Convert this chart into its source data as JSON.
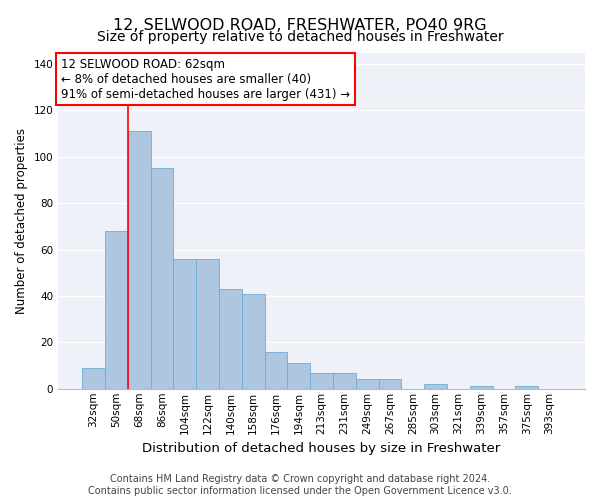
{
  "title": "12, SELWOOD ROAD, FRESHWATER, PO40 9RG",
  "subtitle": "Size of property relative to detached houses in Freshwater",
  "xlabel": "Distribution of detached houses by size in Freshwater",
  "ylabel": "Number of detached properties",
  "categories": [
    "32sqm",
    "50sqm",
    "68sqm",
    "86sqm",
    "104sqm",
    "122sqm",
    "140sqm",
    "158sqm",
    "176sqm",
    "194sqm",
    "213sqm",
    "231sqm",
    "249sqm",
    "267sqm",
    "285sqm",
    "303sqm",
    "321sqm",
    "339sqm",
    "357sqm",
    "375sqm",
    "393sqm"
  ],
  "values": [
    9,
    68,
    111,
    95,
    56,
    56,
    43,
    41,
    16,
    11,
    7,
    7,
    4,
    4,
    0,
    2,
    0,
    1,
    0,
    1,
    0
  ],
  "bar_color": "#aec6e0",
  "bar_edge_color": "#6aaed6",
  "annotation_box_text": "12 SELWOOD ROAD: 62sqm\n← 8% of detached houses are smaller (40)\n91% of semi-detached houses are larger (431) →",
  "box_color": "white",
  "box_edge_color": "red",
  "vline_color": "red",
  "vline_x_index": 1.5,
  "ylim": [
    0,
    145
  ],
  "yticks": [
    0,
    20,
    40,
    60,
    80,
    100,
    120,
    140
  ],
  "bg_color": "#eef2f8",
  "title_fontsize": 11.5,
  "subtitle_fontsize": 10,
  "xlabel_fontsize": 9.5,
  "ylabel_fontsize": 8.5,
  "tick_fontsize": 7.5,
  "footer_fontsize": 7,
  "annotation_fontsize": 8.5,
  "footer_line1": "Contains HM Land Registry data © Crown copyright and database right 2024.",
  "footer_line2": "Contains public sector information licensed under the Open Government Licence v3.0."
}
